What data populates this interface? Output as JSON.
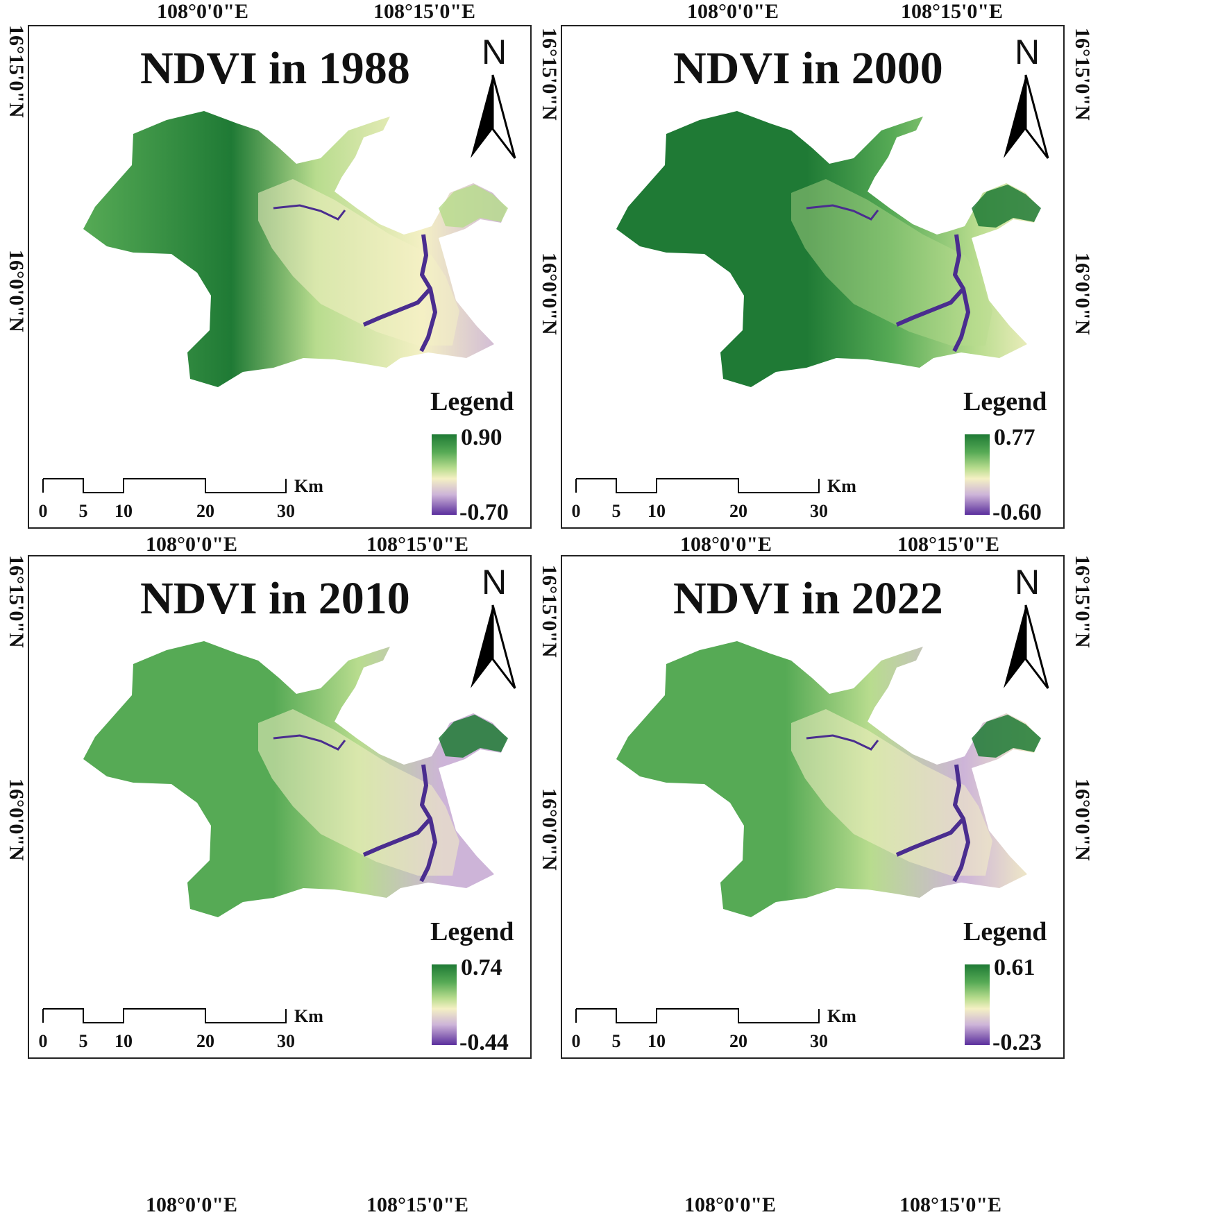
{
  "figure": {
    "lon_labels": [
      "108°0'0\"E",
      "108°15'0\"E"
    ],
    "lat_labels": [
      "16°15'0\"N",
      "16°0'0\"N"
    ],
    "colors": {
      "high": "#1f7a35",
      "mid_green": "#56aa55",
      "light_green": "#b8dc8e",
      "cream": "#f4f0c4",
      "lavender": "#cdb4d8",
      "low": "#5b2f9d",
      "water": "#4a2d8f"
    }
  },
  "panels": [
    {
      "title": "NDVI in 1988",
      "north": "N",
      "legend_title": "Legend",
      "legend_max": "0.90",
      "legend_min": "-0.70",
      "scale_unit": "Km",
      "scale_ticks": [
        "0",
        "5",
        "10",
        "20",
        "30"
      ]
    },
    {
      "title": "NDVI in 2000",
      "north": "N",
      "legend_title": "Legend",
      "legend_max": "0.77",
      "legend_min": "-0.60",
      "scale_unit": "Km",
      "scale_ticks": [
        "0",
        "5",
        "10",
        "20",
        "30"
      ]
    },
    {
      "title": "NDVI in 2010",
      "north": "N",
      "legend_title": "Legend",
      "legend_max": "0.74",
      "legend_min": "-0.44",
      "scale_unit": "Km",
      "scale_ticks": [
        "0",
        "5",
        "10",
        "20",
        "30"
      ]
    },
    {
      "title": "NDVI in 2022",
      "north": "N",
      "legend_title": "Legend",
      "legend_max": "0.61",
      "legend_min": "-0.23",
      "scale_unit": "Km",
      "scale_ticks": [
        "0",
        "5",
        "10",
        "20",
        "30"
      ]
    }
  ]
}
